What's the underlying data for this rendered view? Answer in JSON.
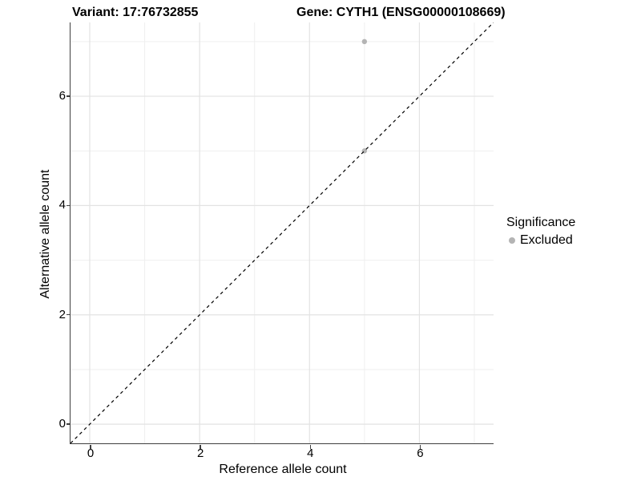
{
  "figure": {
    "title_left": "Variant: 17:76732855",
    "title_right": "Gene: CYTH1 (ENSG00000108669)"
  },
  "chart_data": {
    "type": "scatter",
    "title": "Variant: 17:76732855 — Gene: CYTH1 (ENSG00000108669)",
    "xlabel": "Reference allele count",
    "ylabel": "Alternative allele count",
    "xlim": [
      -0.35,
      7.35
    ],
    "ylim": [
      -0.35,
      7.35
    ],
    "x_ticks": [
      0,
      2,
      4,
      6
    ],
    "y_ticks": [
      0,
      2,
      4,
      6
    ],
    "x_minor_gridlines": [
      1,
      3,
      5,
      7
    ],
    "y_minor_gridlines": [
      1,
      3,
      5,
      7
    ],
    "grid": "major and minor, light gray on white",
    "legend_position": "right",
    "series": [
      {
        "name": "Excluded",
        "marker": "circle",
        "color": "#b4b4b4",
        "points": [
          {
            "x": 5,
            "y": 7
          },
          {
            "x": 5,
            "y": 5
          }
        ]
      }
    ],
    "reference_line": {
      "kind": "identity",
      "equation": "y = x",
      "style": "dashed",
      "color": "#000000"
    }
  },
  "legend": {
    "title": "Significance",
    "entries": [
      {
        "label": "Excluded",
        "marker": "circle",
        "color": "#b4b4b4"
      }
    ]
  },
  "colors": {
    "background": "#ffffff",
    "grid_major": "#e3e3e3",
    "grid_minor": "#efefef",
    "axis_line": "#3f3f3f",
    "text": "#000000",
    "excluded_point": "#b4b4b4"
  }
}
